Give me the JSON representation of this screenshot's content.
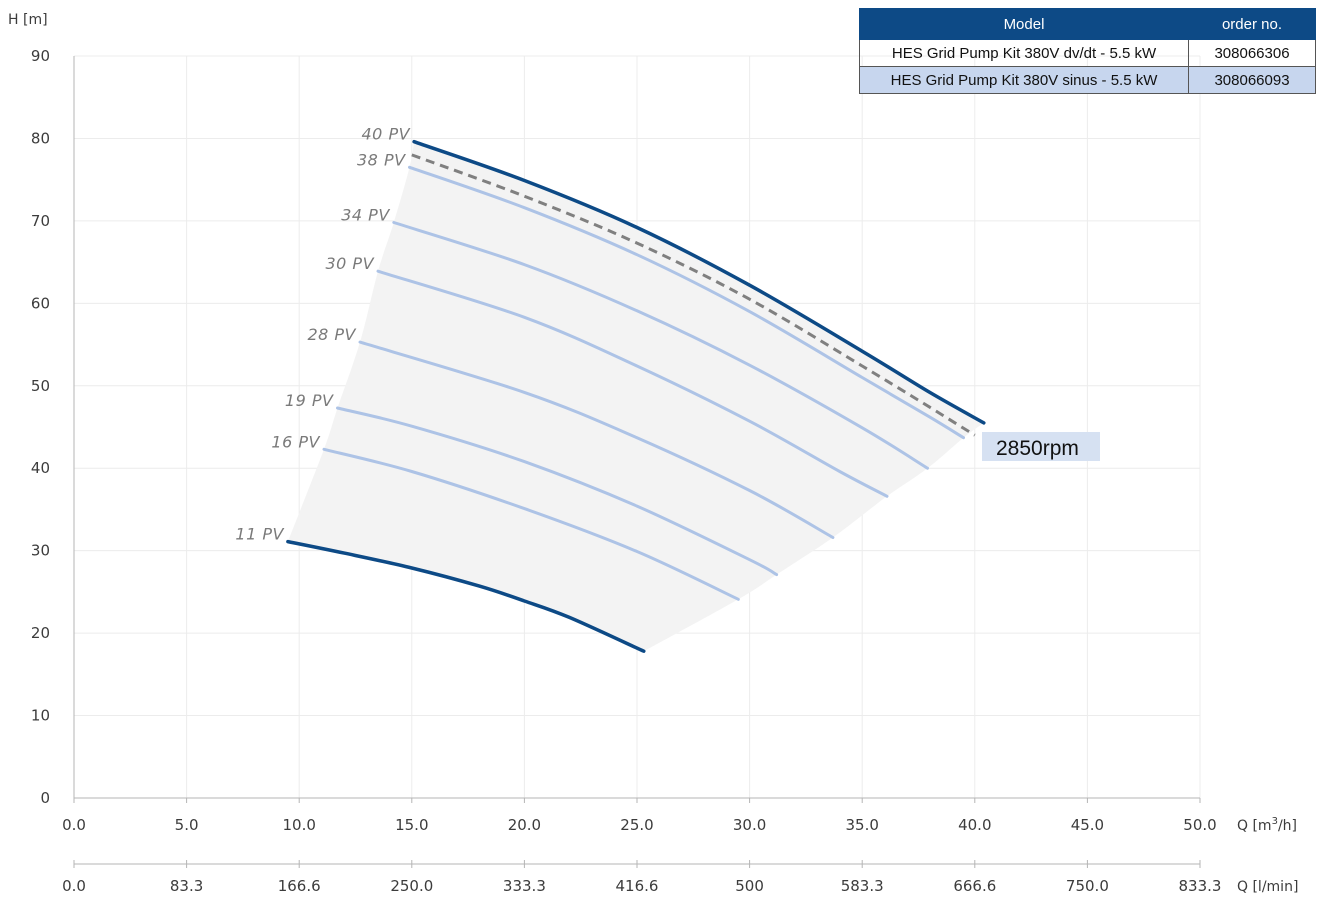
{
  "legend": {
    "headers": {
      "model": "Model",
      "order": "order no."
    },
    "rows": [
      {
        "model": "HES Grid Pump Kit 380V dv/dt - 5.5 kW",
        "order": "308066306"
      },
      {
        "model": "HES Grid Pump Kit 380V sinus - 5.5 kW",
        "order": "308066093"
      }
    ]
  },
  "chart_data": {
    "type": "line",
    "ylabel": "H [m]",
    "xlabel": "Q [m³/h]",
    "xlabel_secondary": "Q [l/min]",
    "ylim": [
      0,
      90
    ],
    "xlim": [
      0,
      50
    ],
    "y_ticks": [
      "0",
      "10",
      "20",
      "30",
      "40",
      "50",
      "60",
      "70",
      "80",
      "90"
    ],
    "x_ticks": [
      "0.0",
      "5.0",
      "10.0",
      "15.0",
      "20.0",
      "25.0",
      "30.0",
      "35.0",
      "40.0",
      "45.0",
      "50.0"
    ],
    "x_ticks_secondary": [
      "0.0",
      "83.3",
      "166.6",
      "250.0",
      "333.3",
      "416.6",
      "500",
      "583.3",
      "666.6",
      "750.0",
      "833.3"
    ],
    "grid": true,
    "annotation": "2850rpm",
    "colors": {
      "boundary": "#0d4a86",
      "curve": "#adc3e6",
      "dashed": "#808080",
      "envelope": "#f3f3f3"
    },
    "series": [
      {
        "name": "40 PV",
        "style": "boundary",
        "x": [
          15.1,
          20.0,
          25.0,
          30.0,
          35.0,
          38.0,
          40.4
        ],
        "y": [
          79.6,
          74.9,
          69.2,
          62.2,
          54.2,
          49.2,
          45.5
        ]
      },
      {
        "name": "",
        "style": "dashed",
        "x": [
          15.0,
          20.0,
          25.0,
          30.0,
          35.0,
          38.0,
          40.0
        ],
        "y": [
          78.0,
          73.0,
          67.3,
          60.5,
          52.4,
          47.4,
          44.0
        ]
      },
      {
        "name": "38 PV",
        "style": "curve",
        "x": [
          14.9,
          20.0,
          25.0,
          30.0,
          35.0,
          38.0,
          39.5
        ],
        "y": [
          76.5,
          71.6,
          65.9,
          59.0,
          51.0,
          46.2,
          43.7
        ]
      },
      {
        "name": "34 PV",
        "style": "curve",
        "x": [
          14.2,
          20.0,
          25.0,
          30.0,
          35.0,
          37.9
        ],
        "y": [
          69.8,
          64.7,
          59.1,
          52.5,
          44.9,
          40.0
        ]
      },
      {
        "name": "30 PV",
        "style": "curve",
        "x": [
          13.5,
          20.0,
          25.0,
          30.0,
          34.0,
          36.1
        ],
        "y": [
          63.9,
          58.3,
          52.4,
          45.7,
          39.6,
          36.6
        ]
      },
      {
        "name": "28 PV",
        "style": "curve",
        "x": [
          12.7,
          20.0,
          25.0,
          30.0,
          33.7
        ],
        "y": [
          55.3,
          49.2,
          43.7,
          37.3,
          31.6
        ]
      },
      {
        "name": "19 PV",
        "style": "curve",
        "x": [
          11.7,
          15.0,
          20.0,
          25.0,
          30.0,
          31.2
        ],
        "y": [
          47.3,
          45.1,
          40.8,
          35.4,
          28.9,
          27.1
        ]
      },
      {
        "name": "16 PV",
        "style": "curve",
        "x": [
          11.1,
          15.0,
          20.0,
          25.0,
          29.5
        ],
        "y": [
          42.3,
          39.6,
          35.1,
          29.9,
          24.1
        ]
      },
      {
        "name": "11 PV",
        "style": "boundary",
        "x": [
          9.5,
          12.0,
          15.0,
          18.0,
          20.0,
          22.0,
          25.3
        ],
        "y": [
          31.1,
          29.7,
          27.9,
          25.7,
          23.9,
          21.9,
          17.8
        ]
      }
    ]
  }
}
